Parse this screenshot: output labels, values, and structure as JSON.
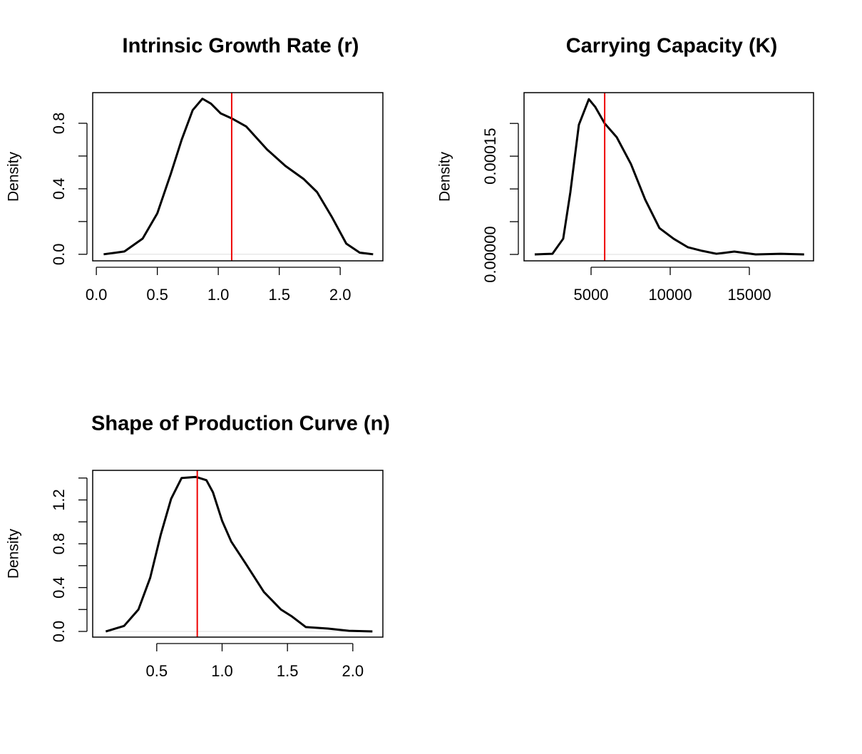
{
  "chart_data": [
    {
      "type": "line",
      "title": "Intrinsic Growth Rate (r)",
      "ylabel": "Density",
      "x": [
        0.06,
        0.23,
        0.38,
        0.5,
        0.61,
        0.7,
        0.79,
        0.87,
        0.94,
        1.02,
        1.11,
        1.23,
        1.4,
        1.55,
        1.7,
        1.81,
        1.93,
        2.05,
        2.16,
        2.27
      ],
      "series": [
        {
          "color": "#000000",
          "values": [
            0,
            0.017,
            0.096,
            0.25,
            0.49,
            0.7,
            0.88,
            0.95,
            0.92,
            0.86,
            0.83,
            0.78,
            0.64,
            0.54,
            0.46,
            0.38,
            0.23,
            0.065,
            0.01,
            0
          ]
        }
      ],
      "vline": 1.11,
      "vline_color": "#ee0000",
      "xlim": [
        -0.03,
        2.35
      ],
      "xticks": [
        {
          "value": 0,
          "label": "0.0"
        },
        0.5,
        {
          "value": 1,
          "label": "1.0"
        },
        1.5,
        {
          "value": 2,
          "label": "2.0"
        }
      ],
      "ylim": [
        -0.04,
        0.987
      ],
      "yticks": [
        {
          "value": 0,
          "label": "0.0"
        },
        {
          "value": 0.2,
          "label": null
        },
        0.4,
        {
          "value": 0.6,
          "label": null
        },
        0.8
      ]
    },
    {
      "type": "line",
      "title": "Carrying Capacity (K)",
      "ylabel": "Density",
      "x": [
        1440,
        2560,
        3240,
        3690,
        4230,
        4860,
        5270,
        5860,
        6620,
        7520,
        8420,
        9320,
        10220,
        11120,
        12020,
        12920,
        14050,
        15400,
        16980,
        18460
      ],
      "series": [
        {
          "color": "#000000",
          "values": [
            0,
            1e-06,
            2.4e-05,
            9.46e-05,
            0.000198,
            0.000237,
            0.000225,
            0.0002,
            0.000179,
            0.000138,
            8.37e-05,
            4.02e-05,
            2.39e-05,
            1.09e-05,
            5.4e-06,
            1e-06,
            4.3e-06,
            0,
            1e-06,
            0
          ]
        }
      ],
      "vline": 5860,
      "vline_color": "#ee0000",
      "xlim": [
        766,
        19054
      ],
      "xticks": [
        5000,
        10000,
        15000
      ],
      "ylim": [
        -9.8e-06,
        0.000247
      ],
      "yticks": [
        {
          "value": 0,
          "label": "0.00000"
        },
        {
          "value": 5e-05,
          "label": null
        },
        {
          "value": 0.0001,
          "label": null
        },
        {
          "value": 0.00015,
          "label": "0.00015"
        },
        {
          "value": 0.0002,
          "label": null
        }
      ]
    },
    {
      "type": "line",
      "title": "Shape of Production Curve (n)",
      "ylabel": "Density",
      "x": [
        0.11,
        0.25,
        0.36,
        0.45,
        0.53,
        0.61,
        0.69,
        0.8,
        0.88,
        0.93,
        1.0,
        1.07,
        1.18,
        1.32,
        1.45,
        1.53,
        1.64,
        1.81,
        1.97,
        2.15
      ],
      "series": [
        {
          "color": "#000000",
          "values": [
            0,
            0.05,
            0.2,
            0.49,
            0.88,
            1.21,
            1.4,
            1.41,
            1.38,
            1.27,
            1.01,
            0.82,
            0.62,
            0.36,
            0.2,
            0.14,
            0.04,
            0.026,
            0.006,
            0
          ]
        }
      ],
      "vline": 0.81,
      "vline_color": "#ee0000",
      "xlim": [
        0.01,
        2.23
      ],
      "xticks": [
        0.5,
        {
          "value": 1,
          "label": "1.0"
        },
        1.5,
        {
          "value": 2,
          "label": "2.0"
        }
      ],
      "ylim": [
        -0.052,
        1.47
      ],
      "yticks": [
        {
          "value": 0,
          "label": "0.0"
        },
        {
          "value": 0.2,
          "label": null
        },
        0.4,
        {
          "value": 0.6,
          "label": null
        },
        0.8,
        {
          "value": 1,
          "label": null
        },
        1.2,
        {
          "value": 1.4,
          "label": null
        }
      ]
    }
  ]
}
